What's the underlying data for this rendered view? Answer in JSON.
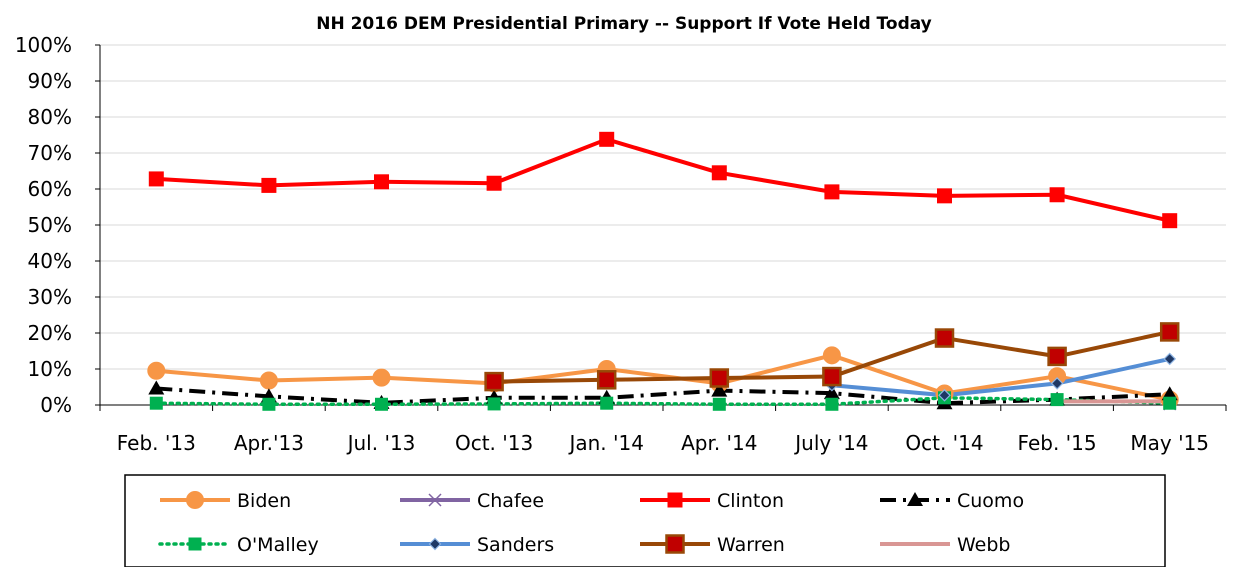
{
  "chart_data": {
    "type": "line",
    "title": "NH 2016 DEM Presidential Primary -- Support If Vote Held Today",
    "xlabel": "",
    "ylabel": "",
    "ylim": [
      0,
      100
    ],
    "y_ticks": [
      "0%",
      "10%",
      "20%",
      "30%",
      "40%",
      "50%",
      "60%",
      "70%",
      "80%",
      "90%",
      "100%"
    ],
    "categories": [
      "Feb. '13",
      "Apr.'13",
      "Jul. '13",
      "Oct. '13",
      "Jan. '14",
      "Apr. '14",
      "July '14",
      "Oct. '14",
      "Feb. '15",
      "May '15"
    ],
    "grid": true,
    "legend_position": "bottom",
    "series": [
      {
        "name": "Biden",
        "color": "#F79646",
        "marker": "circle",
        "dash": "solid",
        "values": [
          9.5,
          6.8,
          7.6,
          6.0,
          10.0,
          6.0,
          13.8,
          3.2,
          8.0,
          1.5
        ]
      },
      {
        "name": "Chafee",
        "color": "#8064A2",
        "marker": "x",
        "dash": "solid",
        "values": [
          null,
          null,
          null,
          null,
          null,
          null,
          null,
          null,
          null,
          0.3
        ]
      },
      {
        "name": "Clinton",
        "color": "#FF0000",
        "marker": "square",
        "dash": "solid",
        "values": [
          62.8,
          61.0,
          62.0,
          61.6,
          73.8,
          64.5,
          59.2,
          58.1,
          58.4,
          51.2
        ]
      },
      {
        "name": "Cuomo",
        "color": "#000000",
        "marker": "triangle",
        "dash": "dashdot",
        "values": [
          4.6,
          2.4,
          0.6,
          2.0,
          2.0,
          4.0,
          3.3,
          0.5,
          1.5,
          3.0
        ]
      },
      {
        "name": "O'Malley",
        "color": "#00B050",
        "marker": "square-green",
        "dash": "dotted",
        "values": [
          0.5,
          0.2,
          0.2,
          0.3,
          0.5,
          0.2,
          0.2,
          2.0,
          1.5,
          0.5
        ]
      },
      {
        "name": "Sanders",
        "color": "#558ED5",
        "marker": "diamond",
        "dash": "solid",
        "values": [
          null,
          null,
          null,
          null,
          null,
          null,
          5.5,
          2.7,
          6.0,
          12.8
        ]
      },
      {
        "name": "Warren",
        "color": "#984807",
        "marker": "square-brown",
        "dash": "solid",
        "values": [
          null,
          null,
          null,
          6.5,
          7.0,
          7.5,
          7.9,
          18.6,
          13.5,
          20.3
        ]
      },
      {
        "name": "Webb",
        "color": "#D99694",
        "marker": "none",
        "dash": "solid",
        "values": [
          null,
          null,
          null,
          null,
          null,
          null,
          null,
          null,
          1.0,
          1.0
        ]
      }
    ]
  }
}
